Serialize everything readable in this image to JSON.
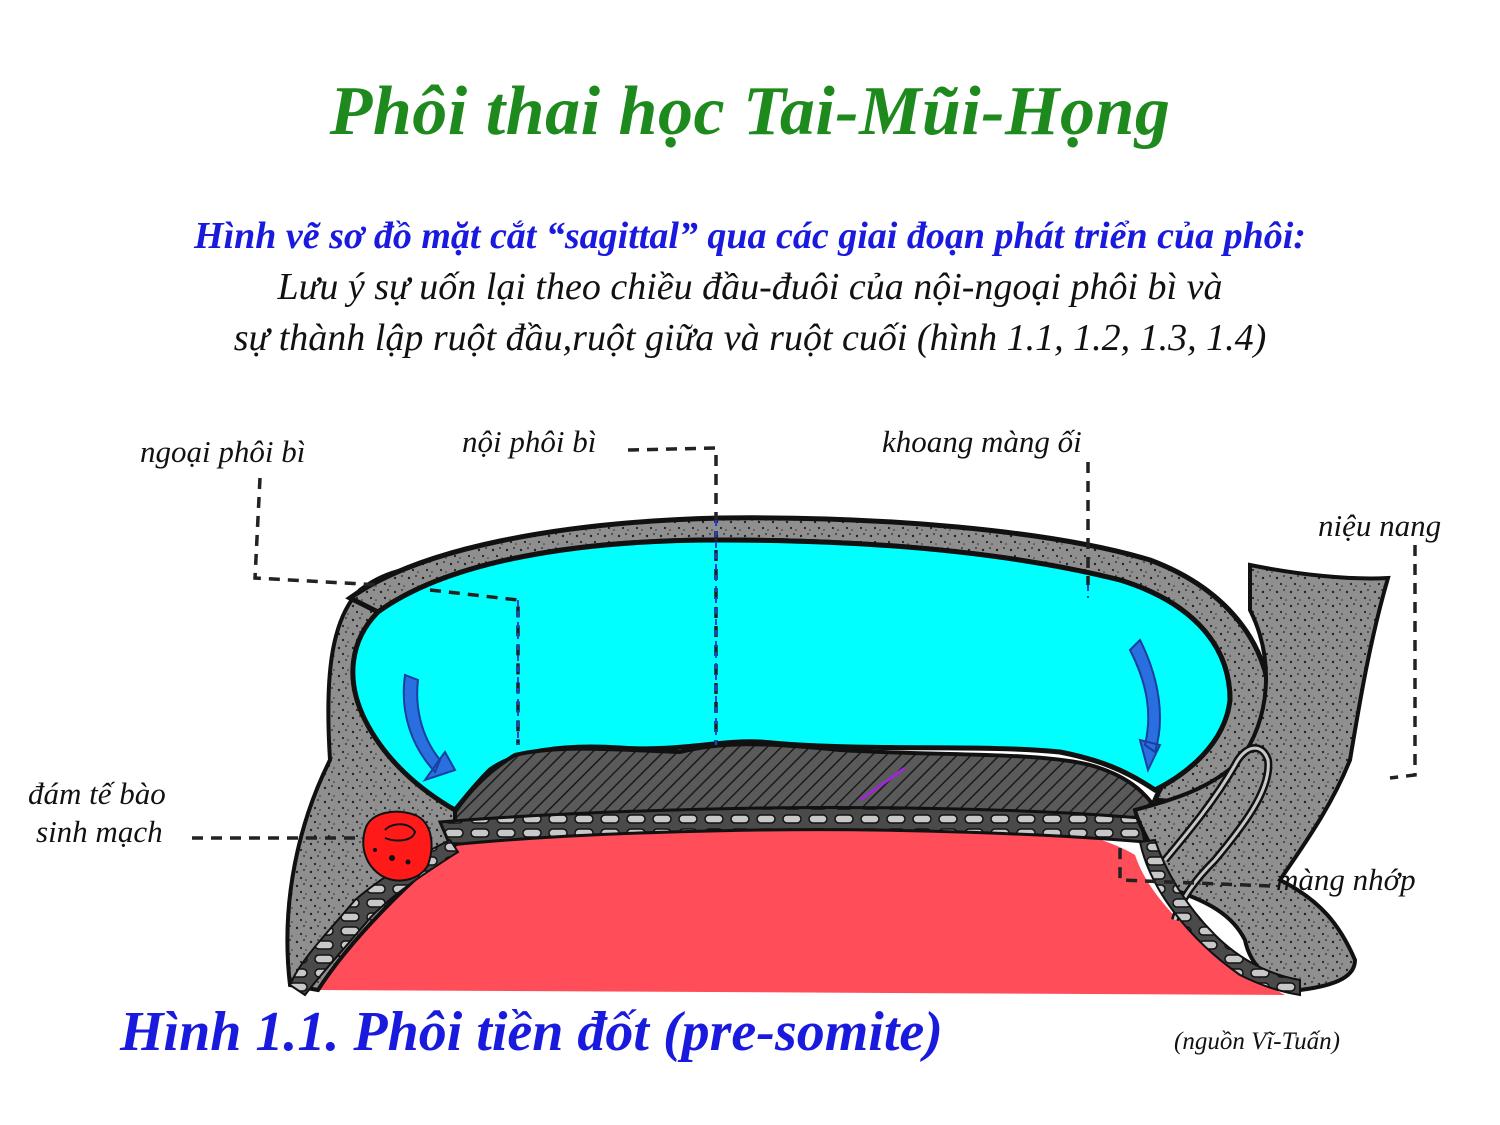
{
  "title": "Phôi thai học Tai-Mũi-Họng",
  "subtitle": {
    "heading": "Hình vẽ sơ đồ mặt cắt “sagittal” qua các giai đoạn phát triển của phôi:",
    "line1": "Lưu ý sự uốn lại theo chiều đầu-đuôi của nội-ngoại phôi bì và",
    "line2": "sự thành lập ruột đầu,ruột giữa và ruột cuối (hình 1.1, 1.2, 1.3, 1.4)"
  },
  "labels": {
    "ngoai_phoi_bi": "ngoại phôi bì",
    "noi_phoi_bi": "nội phôi bì",
    "khoang_mang_oi": "khoang màng ối",
    "nieu_nang": "niệu nang",
    "dam_te_bao": "đám tế bào",
    "sinh_mach": "sinh mạch",
    "mang_nhop": "màng nhớp"
  },
  "caption": "Hình 1.1. Phôi tiền đốt (pre-somite)",
  "source": "(nguồn Vĩ-Tuấn)",
  "colors": {
    "title": "#1e8a1e",
    "heading": "#1a1adf",
    "amniotic_cavity": "#00ffff",
    "yolk_sac": "#ff4d5a",
    "mesoderm": "#8a8a8a",
    "blood_island": "#ff1a1a",
    "arrow": "#2a6fe0"
  }
}
